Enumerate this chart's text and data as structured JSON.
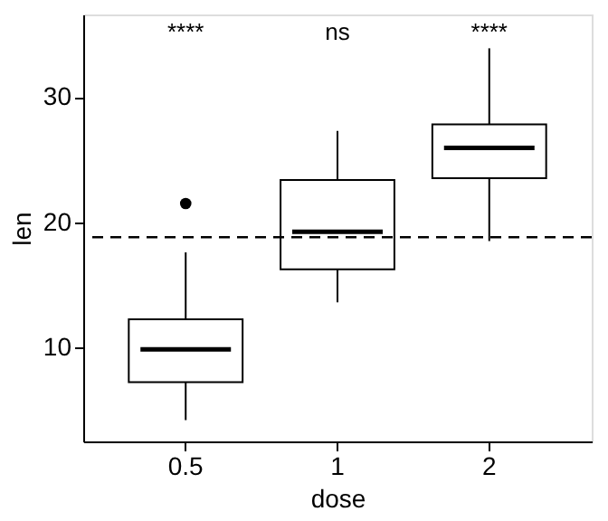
{
  "chart_data": {
    "type": "box",
    "xlabel": "dose",
    "ylabel": "len",
    "categories": [
      "0.5",
      "1",
      "2"
    ],
    "boxes": [
      {
        "low": 4.2,
        "q1": 7.225,
        "median": 9.85,
        "q3": 12.25,
        "high": 17.6,
        "outliers": [
          21.5
        ]
      },
      {
        "low": 13.6,
        "q1": 16.25,
        "median": 19.25,
        "q3": 23.375,
        "high": 27.3
      },
      {
        "low": 18.5,
        "q1": 23.525,
        "median": 25.95,
        "q3": 27.825,
        "high": 33.9
      }
    ],
    "ylim": [
      2.5,
      36.6
    ],
    "yticks": [
      10,
      20,
      30
    ],
    "grid": false,
    "ref_lines": [
      {
        "axis": "y",
        "value": 18.81,
        "line_style": "dashed",
        "color": "#000000"
      }
    ],
    "annotations": [
      "****",
      "ns",
      "****"
    ]
  }
}
